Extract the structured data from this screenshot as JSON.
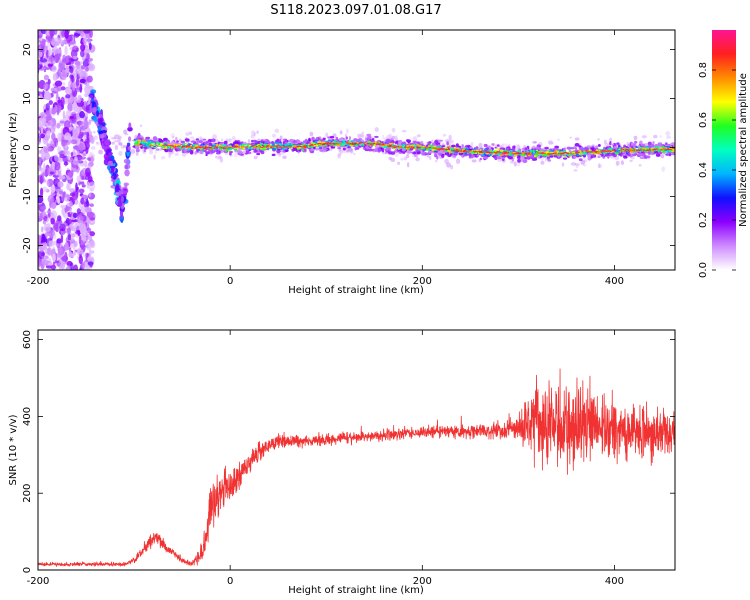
{
  "title": "S118.2023.097.01.08.G17",
  "colors": {
    "snr_line": "#f03232",
    "colormap": [
      "#ffffff",
      "#ce8cff",
      "#8c00ff",
      "#1010ff",
      "#00b4ff",
      "#00ffc0",
      "#20ff20",
      "#ffff00",
      "#ff8c00",
      "#ff2020",
      "#ff1493"
    ]
  },
  "chart_data": [
    {
      "type": "heatmap",
      "xlabel": "Height of straight line (km)",
      "ylabel": "Frequency (Hz)",
      "xlim": [
        -200,
        463
      ],
      "ylim": [
        -25,
        24
      ],
      "xticks": [
        -200,
        0,
        200,
        400
      ],
      "yticks": [
        -20,
        -10,
        0,
        10,
        20
      ],
      "grid": false,
      "colorbar": {
        "label": "Normalized spectral amplitude",
        "range": [
          0,
          0.96
        ],
        "ticks": [
          "0.0",
          "0.2",
          "0.4",
          "0.6",
          "0.8"
        ],
        "tick_values": [
          0,
          0.2,
          0.4,
          0.6,
          0.8
        ]
      },
      "ridge": {
        "x": [
          -100,
          -85,
          -60,
          -30,
          0,
          20,
          50,
          80,
          90,
          120,
          150,
          170,
          200,
          250,
          300,
          350,
          400,
          463
        ],
        "y": [
          1.0,
          0.8,
          0.3,
          0.0,
          0.0,
          0.2,
          0.2,
          0.2,
          0.8,
          0.8,
          0.8,
          0.2,
          0.0,
          -0.8,
          -1.2,
          -1.2,
          -0.6,
          -0.3
        ]
      },
      "arc": {
        "x": [
          -145,
          -135,
          -125,
          -118,
          -112,
          -108,
          -104
        ],
        "y": [
          10,
          5,
          -2,
          -8,
          -12,
          -6,
          5
        ]
      }
    },
    {
      "type": "line",
      "series": [
        {
          "name": ""
        }
      ],
      "xlabel": "Height of straight line (km)",
      "ylabel": "SNR (10 * v/v)",
      "xlim": [
        -200,
        463
      ],
      "ylim": [
        0,
        625
      ],
      "xticks": [
        -200,
        0,
        200,
        400
      ],
      "yticks": [
        0,
        200,
        400,
        600
      ],
      "grid": false,
      "envelope": {
        "x": [
          -200,
          -110,
          -100,
          -90,
          -82,
          -75,
          -70,
          -60,
          -50,
          -40,
          -30,
          -25,
          -20,
          -15,
          -10,
          0,
          10,
          20,
          30,
          40,
          50,
          70,
          100,
          150,
          200,
          250,
          300,
          320,
          350,
          380,
          420,
          463
        ],
        "mean": [
          15,
          15,
          25,
          55,
          75,
          85,
          65,
          45,
          25,
          15,
          40,
          80,
          160,
          180,
          200,
          215,
          240,
          280,
          310,
          325,
          335,
          335,
          340,
          350,
          360,
          360,
          370,
          390,
          380,
          375,
          360,
          350
        ],
        "amp": [
          8,
          8,
          12,
          20,
          25,
          25,
          20,
          15,
          10,
          10,
          40,
          80,
          100,
          90,
          80,
          60,
          55,
          50,
          40,
          30,
          25,
          22,
          22,
          22,
          22,
          25,
          45,
          170,
          160,
          150,
          110,
          80
        ]
      },
      "samples": 2600
    }
  ]
}
